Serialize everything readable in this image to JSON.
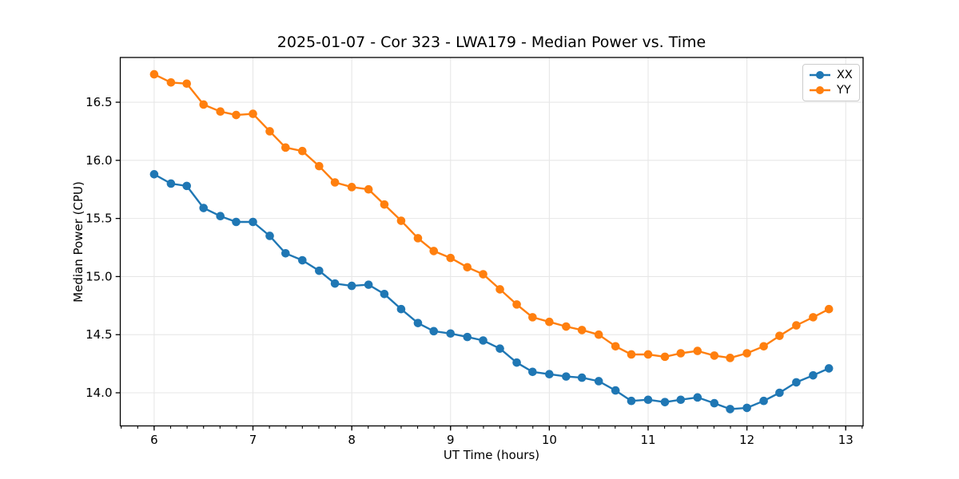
{
  "chart_data": {
    "type": "line",
    "title": "2025-01-07 - Cor 323 - LWA179 - Median Power vs. Time",
    "xlabel": "UT Time (hours)",
    "ylabel": "Median Power (CPU)",
    "xlim": [
      5.657,
      13.176
    ],
    "ylim": [
      13.715,
      16.885
    ],
    "xticks": [
      6,
      7,
      8,
      9,
      10,
      11,
      12,
      13
    ],
    "xtick_labels": [
      "6",
      "7",
      "8",
      "9",
      "10",
      "11",
      "12",
      "13"
    ],
    "yticks": [
      14.0,
      14.5,
      15.0,
      15.5,
      16.0,
      16.5
    ],
    "ytick_labels": [
      "14.0",
      "14.5",
      "15.0",
      "15.5",
      "16.0",
      "16.5"
    ],
    "minor_xtick_step": 0.1666667,
    "grid": true,
    "grid_color": "#e7e7e7",
    "legend_position": "upper right",
    "marker": "circle",
    "x": [
      6.0,
      6.17,
      6.33,
      6.5,
      6.67,
      6.83,
      7.0,
      7.17,
      7.33,
      7.5,
      7.67,
      7.83,
      8.0,
      8.17,
      8.33,
      8.5,
      8.67,
      8.83,
      9.0,
      9.17,
      9.33,
      9.5,
      9.67,
      9.83,
      10.0,
      10.17,
      10.33,
      10.5,
      10.67,
      10.83,
      11.0,
      11.17,
      11.33,
      11.5,
      11.67,
      11.83,
      12.0,
      12.17,
      12.33,
      12.5,
      12.67,
      12.83
    ],
    "series": [
      {
        "name": "XX",
        "color": "#1f77b4",
        "values": [
          15.88,
          15.8,
          15.78,
          15.59,
          15.52,
          15.47,
          15.47,
          15.35,
          15.2,
          15.14,
          15.05,
          14.94,
          14.92,
          14.93,
          14.85,
          14.72,
          14.6,
          14.53,
          14.51,
          14.48,
          14.45,
          14.38,
          14.26,
          14.18,
          14.16,
          14.14,
          14.13,
          14.1,
          14.02,
          13.93,
          13.94,
          13.92,
          13.94,
          13.96,
          13.91,
          13.86,
          13.87,
          13.93,
          14.0,
          14.09,
          14.15,
          14.21
        ]
      },
      {
        "name": "YY",
        "color": "#ff7f0e",
        "values": [
          16.74,
          16.67,
          16.66,
          16.48,
          16.42,
          16.39,
          16.4,
          16.25,
          16.11,
          16.08,
          15.95,
          15.81,
          15.77,
          15.75,
          15.62,
          15.48,
          15.33,
          15.22,
          15.16,
          15.08,
          15.02,
          14.89,
          14.76,
          14.65,
          14.61,
          14.57,
          14.54,
          14.5,
          14.4,
          14.33,
          14.33,
          14.31,
          14.34,
          14.36,
          14.32,
          14.3,
          14.34,
          14.4,
          14.49,
          14.58,
          14.65,
          14.72
        ]
      }
    ]
  }
}
